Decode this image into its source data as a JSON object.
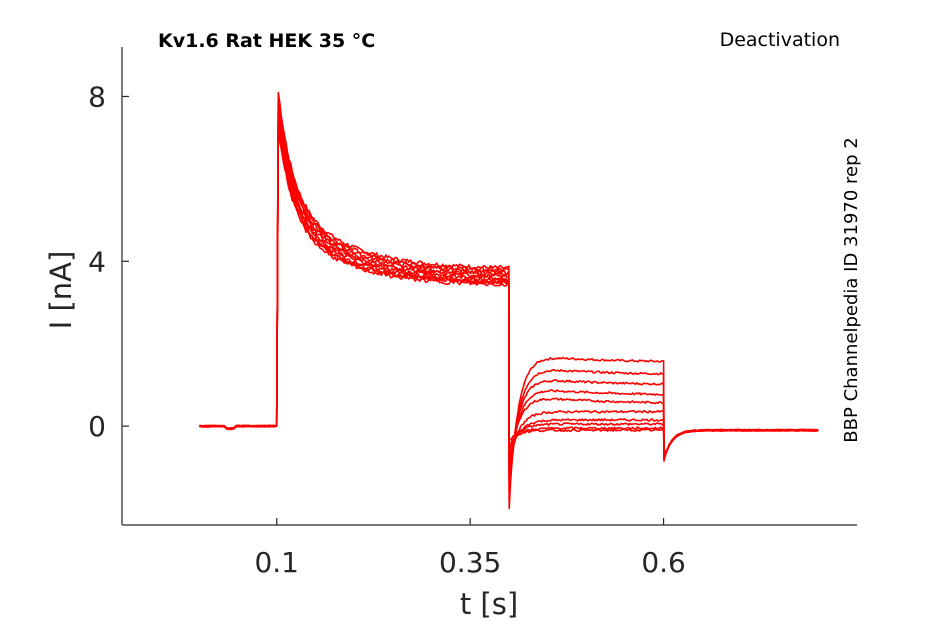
{
  "chart_data": {
    "type": "line",
    "title": "Kv1.6  Rat  HEK  35 °C",
    "subtitle": "Deactivation",
    "side_label": "BBP Channelpedia ID 31970 rep 2",
    "xlabel": "t [s]",
    "ylabel": "I [nA]",
    "xlim": [
      -0.1,
      0.85
    ],
    "ylim": [
      -2.4,
      9.2
    ],
    "xticks": [
      0.1,
      0.35,
      0.6
    ],
    "xtick_labels": [
      "0.1",
      "0.35",
      "0.6"
    ],
    "yticks": [
      0,
      4,
      8
    ],
    "ytick_labels": [
      "0",
      "4",
      "8"
    ],
    "grid": false,
    "legend": "none",
    "color": "#ff0000",
    "protocol": {
      "baseline_start": 0.0,
      "step_on": 0.1,
      "step_off": 0.4,
      "tail_end": 0.6,
      "end": 0.8
    },
    "series": [
      {
        "peak": 8.1,
        "plateau": 3.8,
        "tail_initial": -2.0,
        "tail_final": 1.55
      },
      {
        "peak": 8.0,
        "plateau": 3.75,
        "tail_initial": -1.8,
        "tail_final": 1.25
      },
      {
        "peak": 7.9,
        "plateau": 3.7,
        "tail_initial": -1.6,
        "tail_final": 1.0
      },
      {
        "peak": 7.8,
        "plateau": 3.65,
        "tail_initial": -1.4,
        "tail_final": 0.75
      },
      {
        "peak": 7.7,
        "plateau": 3.6,
        "tail_initial": -1.2,
        "tail_final": 0.55
      },
      {
        "peak": 7.6,
        "plateau": 3.55,
        "tail_initial": -1.0,
        "tail_final": 0.35
      },
      {
        "peak": 7.5,
        "plateau": 3.5,
        "tail_initial": -0.8,
        "tail_final": 0.15
      },
      {
        "peak": 7.4,
        "plateau": 3.45,
        "tail_initial": -0.6,
        "tail_final": 0.05
      },
      {
        "peak": 7.3,
        "plateau": 3.45,
        "tail_initial": -0.5,
        "tail_final": -0.05
      },
      {
        "peak": 7.2,
        "plateau": 3.4,
        "tail_initial": -0.35,
        "tail_final": -0.1
      }
    ],
    "final_tail_dip": -0.85,
    "final_level": -0.1
  }
}
